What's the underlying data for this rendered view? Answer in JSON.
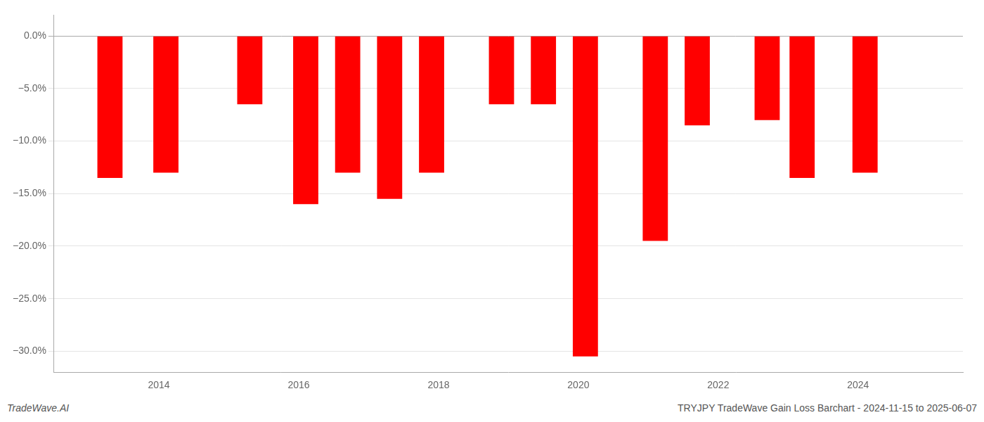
{
  "chart_data": {
    "type": "bar",
    "x": [
      2013.3,
      2014.1,
      2015.3,
      2016.1,
      2016.7,
      2017.3,
      2017.9,
      2018.9,
      2019.5,
      2020.1,
      2021.1,
      2021.7,
      2022.7,
      2023.2,
      2024.1
    ],
    "values": [
      -13.5,
      -13.0,
      -6.5,
      -16.0,
      -13.0,
      -15.5,
      -13.0,
      -6.5,
      -6.5,
      -30.5,
      -19.5,
      -8.5,
      -8.0,
      -13.5,
      -13.0
    ],
    "color": "#ff0000",
    "xlim": [
      2012.5,
      2025.5
    ],
    "xticks": [
      2014,
      2016,
      2018,
      2020,
      2022,
      2024
    ],
    "ylim": [
      -32,
      2.0
    ],
    "yticks": [
      {
        "value": 0.0,
        "label": "0.0%"
      },
      {
        "value": -5.0,
        "label": "−5.0%"
      },
      {
        "value": -10.0,
        "label": "−10.0%"
      },
      {
        "value": -15.0,
        "label": "−15.0%"
      },
      {
        "value": -20.0,
        "label": "−20.0%"
      },
      {
        "value": -25.0,
        "label": "−25.0%"
      },
      {
        "value": -30.0,
        "label": "−30.0%"
      }
    ],
    "grid": "y",
    "annotations": [
      "TradeWave.AI",
      "TRYJPY TradeWave Gain Loss Barchart - 2024-11-15 to 2025-06-07"
    ]
  }
}
